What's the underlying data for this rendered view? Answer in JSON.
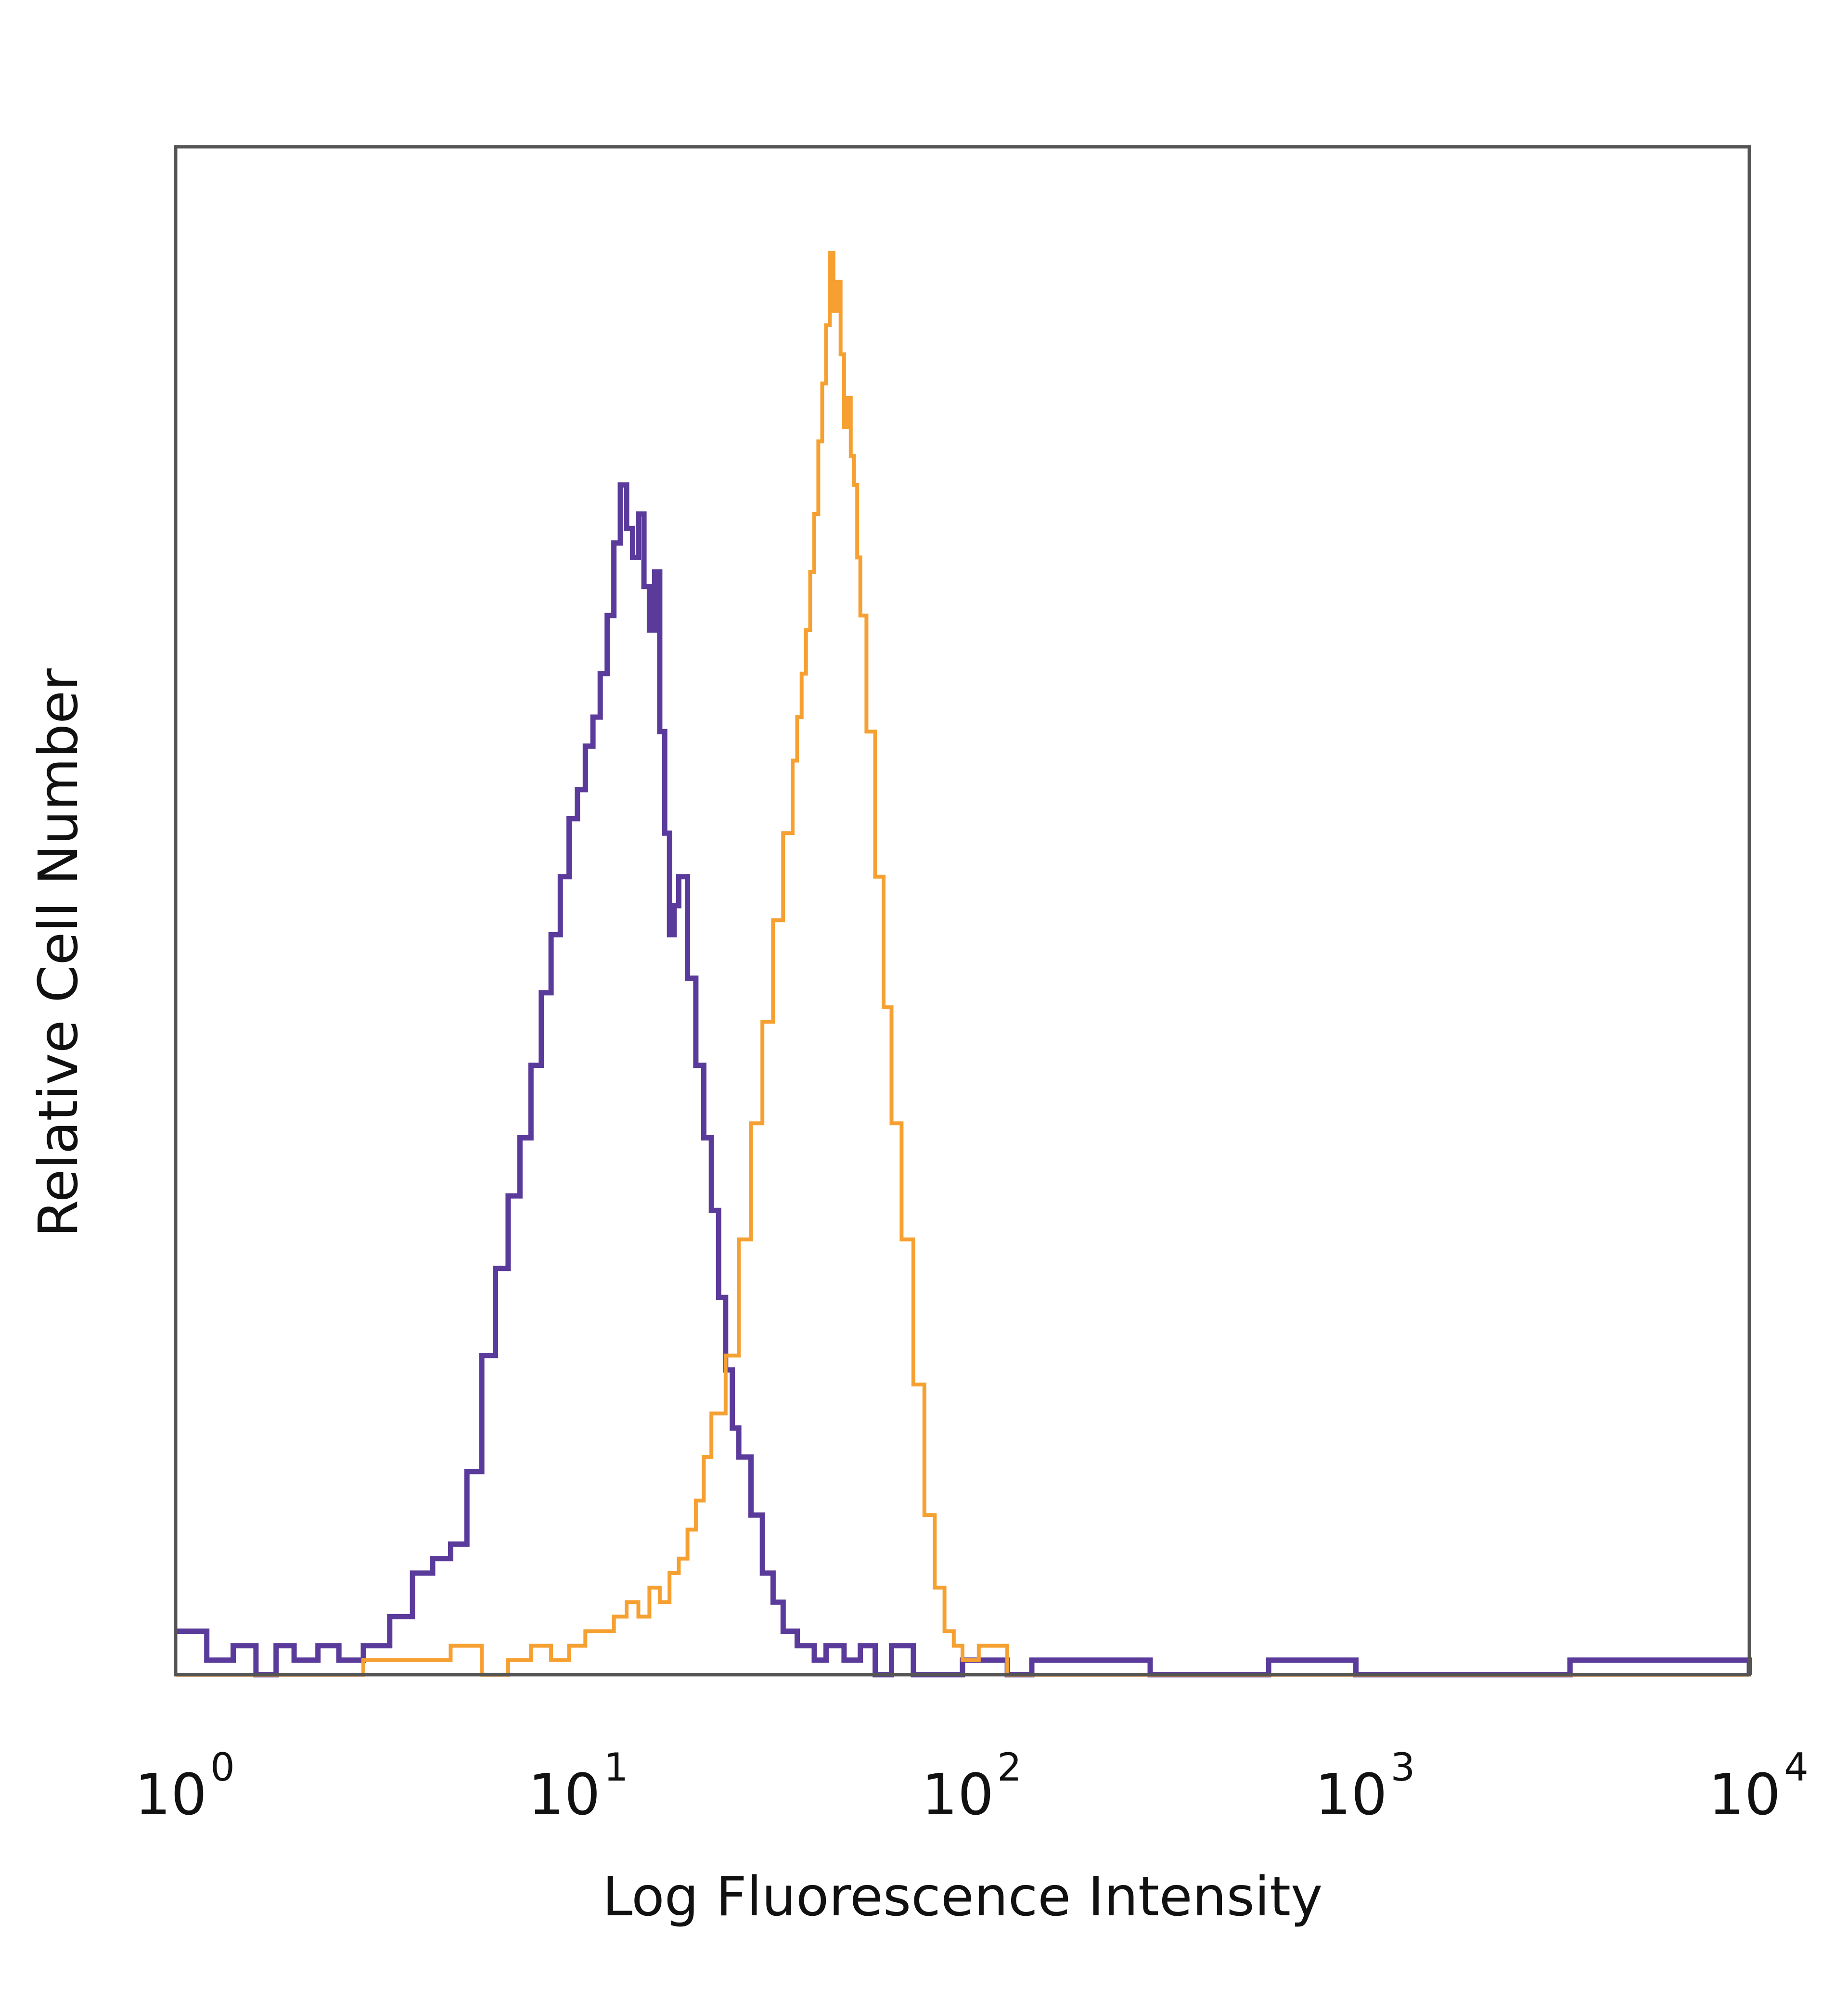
{
  "chart_data": {
    "type": "line",
    "title": "",
    "xlabel": "Log Fluorescence Intensity",
    "ylabel": "Relative Cell Number",
    "x_scale": "log",
    "xlim": [
      1,
      10000
    ],
    "ylim": [
      0,
      1
    ],
    "grid": false,
    "legend": "none",
    "x_ticks": [
      {
        "value": 1,
        "base": "10",
        "exp": "0"
      },
      {
        "value": 10,
        "base": "10",
        "exp": "1"
      },
      {
        "value": 100,
        "base": "10",
        "exp": "2"
      },
      {
        "value": 1000,
        "base": "10",
        "exp": "3"
      },
      {
        "value": 10000,
        "base": "10",
        "exp": "4"
      }
    ],
    "series": [
      {
        "color": "#5a3a9a",
        "points": [
          [
            1.0,
            0.03
          ],
          [
            1.2,
            0.01
          ],
          [
            1.4,
            0.02
          ],
          [
            1.6,
            0.0
          ],
          [
            1.8,
            0.02
          ],
          [
            2.0,
            0.01
          ],
          [
            2.3,
            0.02
          ],
          [
            2.6,
            0.01
          ],
          [
            3.0,
            0.02
          ],
          [
            3.5,
            0.04
          ],
          [
            4.0,
            0.07
          ],
          [
            4.5,
            0.08
          ],
          [
            5.0,
            0.09
          ],
          [
            5.5,
            0.14
          ],
          [
            6.0,
            0.22
          ],
          [
            6.5,
            0.28
          ],
          [
            7.0,
            0.33
          ],
          [
            7.5,
            0.37
          ],
          [
            8.0,
            0.42
          ],
          [
            8.5,
            0.47
          ],
          [
            9.0,
            0.51
          ],
          [
            9.5,
            0.55
          ],
          [
            10.0,
            0.59
          ],
          [
            10.5,
            0.61
          ],
          [
            11.0,
            0.64
          ],
          [
            11.5,
            0.66
          ],
          [
            12.0,
            0.69
          ],
          [
            12.5,
            0.73
          ],
          [
            13.0,
            0.78
          ],
          [
            13.5,
            0.82
          ],
          [
            14.0,
            0.79
          ],
          [
            14.5,
            0.77
          ],
          [
            15.0,
            0.8
          ],
          [
            15.5,
            0.75
          ],
          [
            16.0,
            0.72
          ],
          [
            16.5,
            0.76
          ],
          [
            17.0,
            0.65
          ],
          [
            17.5,
            0.58
          ],
          [
            18.0,
            0.51
          ],
          [
            18.5,
            0.53
          ],
          [
            19.0,
            0.55
          ],
          [
            20.0,
            0.48
          ],
          [
            21.0,
            0.42
          ],
          [
            22.0,
            0.37
          ],
          [
            23.0,
            0.32
          ],
          [
            24.0,
            0.26
          ],
          [
            25.0,
            0.21
          ],
          [
            26.0,
            0.17
          ],
          [
            27.0,
            0.15
          ],
          [
            29.0,
            0.11
          ],
          [
            31.0,
            0.07
          ],
          [
            33.0,
            0.05
          ],
          [
            35.0,
            0.03
          ],
          [
            38.0,
            0.02
          ],
          [
            42.0,
            0.01
          ],
          [
            45.0,
            0.02
          ],
          [
            50.0,
            0.01
          ],
          [
            55.0,
            0.02
          ],
          [
            60.0,
            0.0
          ],
          [
            66.0,
            0.02
          ],
          [
            75.0,
            0.0
          ],
          [
            100.0,
            0.01
          ],
          [
            130.0,
            0.0
          ],
          [
            150.0,
            0.01
          ],
          [
            200.0,
            0.01
          ],
          [
            300.0,
            0.0
          ],
          [
            600.0,
            0.01
          ],
          [
            1000.0,
            0.0
          ],
          [
            3500.0,
            0.01
          ],
          [
            10000.0,
            0.0
          ]
        ]
      },
      {
        "color": "#f5a030",
        "points": [
          [
            1.0,
            0.0
          ],
          [
            2.0,
            0.0
          ],
          [
            3.0,
            0.01
          ],
          [
            4.0,
            0.01
          ],
          [
            5.0,
            0.02
          ],
          [
            6.0,
            0.0
          ],
          [
            7.0,
            0.01
          ],
          [
            8.0,
            0.02
          ],
          [
            9.0,
            0.01
          ],
          [
            10.0,
            0.02
          ],
          [
            11.0,
            0.03
          ],
          [
            12.0,
            0.03
          ],
          [
            13.0,
            0.04
          ],
          [
            14.0,
            0.05
          ],
          [
            15.0,
            0.04
          ],
          [
            16.0,
            0.06
          ],
          [
            17.0,
            0.05
          ],
          [
            18.0,
            0.07
          ],
          [
            19.0,
            0.08
          ],
          [
            20.0,
            0.1
          ],
          [
            21.0,
            0.12
          ],
          [
            22.0,
            0.15
          ],
          [
            23.0,
            0.18
          ],
          [
            25.0,
            0.22
          ],
          [
            27.0,
            0.3
          ],
          [
            29.0,
            0.38
          ],
          [
            31.0,
            0.45
          ],
          [
            33.0,
            0.52
          ],
          [
            35.0,
            0.58
          ],
          [
            37.0,
            0.63
          ],
          [
            38.0,
            0.66
          ],
          [
            39.0,
            0.69
          ],
          [
            40.0,
            0.72
          ],
          [
            41.0,
            0.76
          ],
          [
            42.0,
            0.8
          ],
          [
            43.0,
            0.85
          ],
          [
            44.0,
            0.89
          ],
          [
            45.0,
            0.93
          ],
          [
            46.0,
            0.98
          ],
          [
            47.0,
            0.94
          ],
          [
            48.0,
            0.96
          ],
          [
            49.0,
            0.91
          ],
          [
            50.0,
            0.86
          ],
          [
            51.0,
            0.88
          ],
          [
            52.0,
            0.84
          ],
          [
            53.0,
            0.82
          ],
          [
            54.0,
            0.77
          ],
          [
            55.0,
            0.73
          ],
          [
            57.0,
            0.65
          ],
          [
            60.0,
            0.55
          ],
          [
            63.0,
            0.46
          ],
          [
            66.0,
            0.38
          ],
          [
            70.0,
            0.3
          ],
          [
            75.0,
            0.2
          ],
          [
            80.0,
            0.11
          ],
          [
            85.0,
            0.06
          ],
          [
            90.0,
            0.03
          ],
          [
            95.0,
            0.02
          ],
          [
            100.0,
            0.01
          ],
          [
            110.0,
            0.02
          ],
          [
            130.0,
            0.0
          ],
          [
            200.0,
            0.0
          ],
          [
            10000.0,
            0.0
          ]
        ]
      }
    ]
  }
}
